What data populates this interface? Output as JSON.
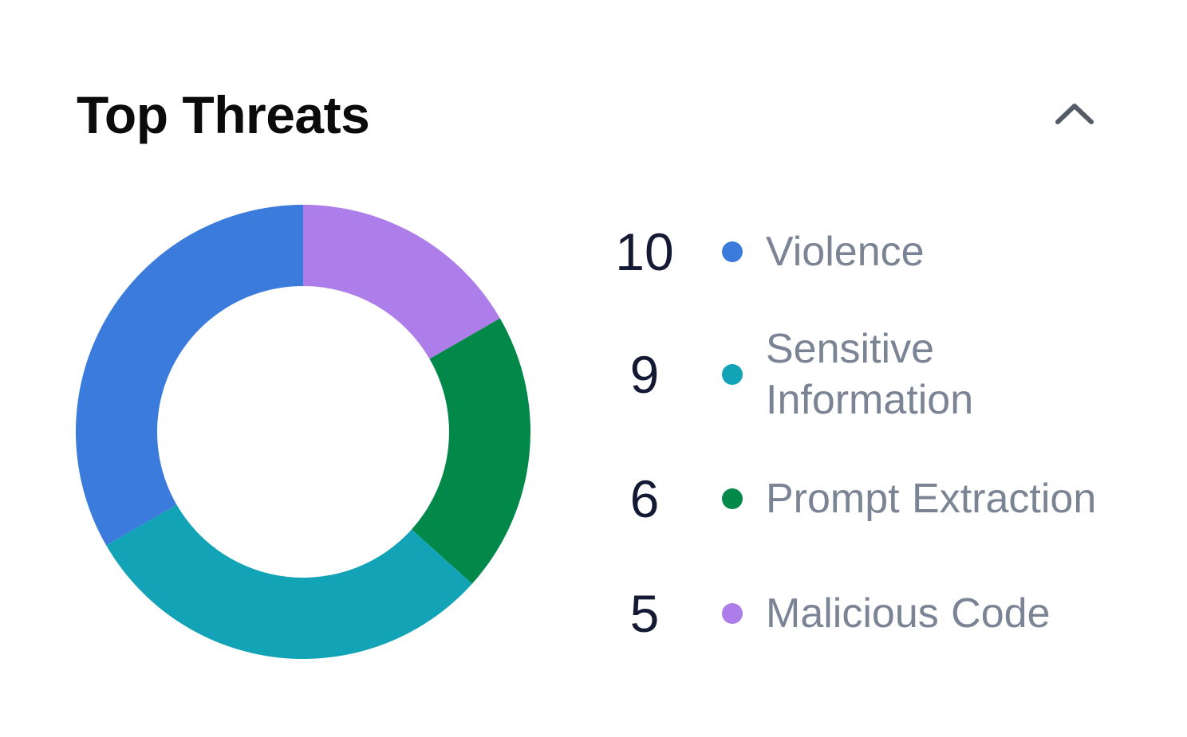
{
  "header": {
    "title": "Top Threats",
    "collapse_icon": "chevron-up-icon"
  },
  "chart_data": {
    "type": "pie",
    "title": "Top Threats",
    "donut": true,
    "categories": [
      "Violence",
      "Sensitive Information",
      "Prompt Extraction",
      "Malicious Code"
    ],
    "values": [
      10,
      9,
      6,
      5
    ],
    "colors": [
      "#3b7bdb",
      "#13a3b6",
      "#02894a",
      "#ad7ee9"
    ],
    "draw_order": [
      3,
      2,
      1,
      0
    ],
    "legend": "right"
  },
  "legend": [
    {
      "count": "10",
      "label": "Violence",
      "color": "#3b7bdb"
    },
    {
      "count": "9",
      "label": "Sensitive Information",
      "color": "#13a3b6"
    },
    {
      "count": "6",
      "label": "Prompt Extraction",
      "color": "#02894a"
    },
    {
      "count": "5",
      "label": "Malicious Code",
      "color": "#ad7ee9"
    }
  ]
}
